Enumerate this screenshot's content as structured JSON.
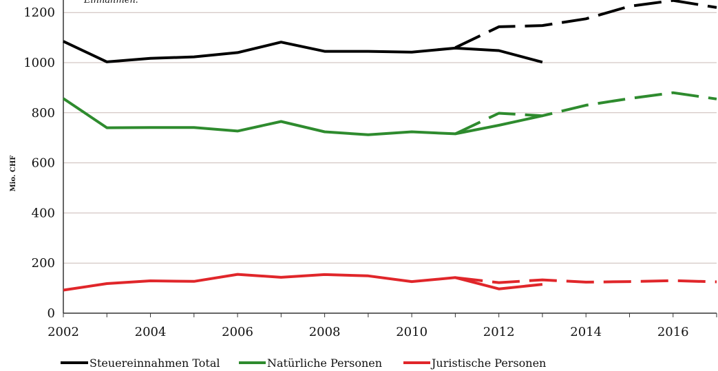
{
  "chart_data": {
    "type": "line",
    "ylabel": "Mio. CHF",
    "annotation": "Einnahmen:",
    "xlim": [
      2002,
      2017
    ],
    "ylim": [
      0,
      1250
    ],
    "x_ticks": [
      "2002",
      "2004",
      "2006",
      "2008",
      "2010",
      "2012",
      "2014",
      "2016"
    ],
    "y_ticks": [
      "0",
      "200",
      "400",
      "600",
      "800",
      "1000",
      "1200"
    ],
    "grid": "horizontal",
    "legend_position": "bottom",
    "colors": {
      "Steuereinnahmen Total": "#000000",
      "Natürliche Personen": "#2e8b2e",
      "Juristische Personen": "#e0262a",
      "grid": "#c9b9b6",
      "axis": "#333333"
    },
    "series": [
      {
        "name": "Steuereinnahmen Total",
        "style": "solid",
        "x": [
          2002,
          2003,
          2004,
          2005,
          2006,
          2007,
          2008,
          2009,
          2010,
          2011,
          2012,
          2013
        ],
        "values": [
          1085,
          1003,
          1017,
          1023,
          1040,
          1082,
          1045,
          1045,
          1042,
          1058,
          1048,
          1002
        ]
      },
      {
        "name": "Steuereinnahmen Total",
        "style": "dashed",
        "x": [
          2011,
          2012,
          2013,
          2014,
          2015,
          2016,
          2017
        ],
        "values": [
          1060,
          1143,
          1148,
          1175,
          1225,
          1248,
          1220
        ]
      },
      {
        "name": "Natürliche Personen",
        "style": "solid",
        "x": [
          2002,
          2003,
          2004,
          2005,
          2006,
          2007,
          2008,
          2009,
          2010,
          2011,
          2012,
          2013
        ],
        "values": [
          857,
          740,
          741,
          741,
          727,
          765,
          724,
          712,
          724,
          716,
          750,
          788
        ]
      },
      {
        "name": "Natürliche Personen",
        "style": "dashed",
        "x": [
          2011,
          2012,
          2013,
          2014,
          2015,
          2016,
          2017
        ],
        "values": [
          716,
          798,
          788,
          830,
          857,
          880,
          855
        ]
      },
      {
        "name": "Juristische Personen",
        "style": "solid",
        "x": [
          2002,
          2003,
          2004,
          2005,
          2006,
          2007,
          2008,
          2009,
          2010,
          2011,
          2012,
          2013
        ],
        "values": [
          92,
          118,
          129,
          127,
          155,
          143,
          154,
          149,
          126,
          142,
          97,
          115
        ]
      },
      {
        "name": "Juristische Personen",
        "style": "dashed",
        "x": [
          2011,
          2012,
          2013,
          2014,
          2015,
          2016,
          2017
        ],
        "values": [
          142,
          122,
          133,
          124,
          126,
          130,
          125
        ]
      }
    ],
    "legend": [
      "Steuereinnahmen Total",
      "Natürliche Personen",
      "Juristische Personen"
    ]
  }
}
